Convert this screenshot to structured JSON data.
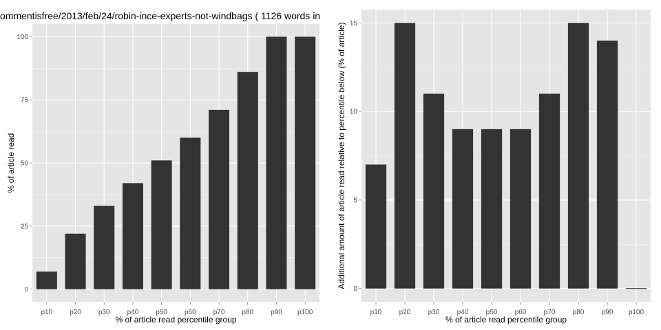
{
  "colors": {
    "panel_bg": "#e5e5e5",
    "grid_major": "#ffffff",
    "grid_minor": "#f2f2f2",
    "bar": "#333333",
    "tick": "#4d4d4d"
  },
  "chart_data": [
    {
      "type": "bar",
      "title": "ommentisfree/2013/feb/24/robin-ince-experts-not-windbags ( 1126 words in",
      "xlabel": "% of article read percentile group",
      "ylabel": "% of article read",
      "categories": [
        "p10",
        "p20",
        "p30",
        "p40",
        "p50",
        "p60",
        "p70",
        "p80",
        "p90",
        "p100"
      ],
      "values": [
        7,
        22,
        33,
        42,
        51,
        60,
        71,
        86,
        100,
        100
      ],
      "yticks": [
        0,
        25,
        50,
        75,
        100
      ],
      "ylim": [
        -5,
        105
      ],
      "grid": true
    },
    {
      "type": "bar",
      "title": "",
      "xlabel": "% of article read percentile group",
      "ylabel": "Additional amount of article read relative to percentile below (% of article)",
      "categories": [
        "p10",
        "p20",
        "p30",
        "p40",
        "p50",
        "p60",
        "p70",
        "p80",
        "p90",
        "p100"
      ],
      "values": [
        7,
        15,
        11,
        9,
        9,
        9,
        11,
        15,
        14,
        0
      ],
      "yticks": [
        0,
        5,
        10,
        15
      ],
      "ylim": [
        -0.75,
        15.75
      ],
      "grid": true
    }
  ]
}
